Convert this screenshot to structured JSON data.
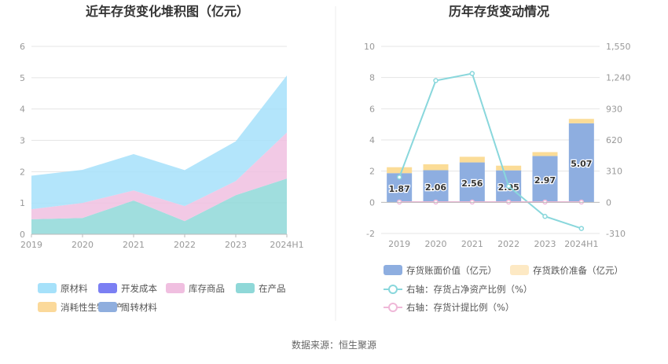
{
  "source": {
    "label": "数据来源：",
    "name": "恒生聚源"
  },
  "colors": {
    "raw_material": "#a6e1fa",
    "dev_cost": "#7b7ff3",
    "finished_goods": "#f0bfe0",
    "wip": "#8fd8d8",
    "consumable_bio": "#fbd99a",
    "turnover_material": "#8faede",
    "book_value_bar": "#8eaee0",
    "impairment_bar": "#fbdc97",
    "ratio_line": "#89d7dc",
    "provision_line": "#efb8d8",
    "grid": "#e5e5e5",
    "axis": "#bbbbbb"
  },
  "chart_data": [
    {
      "type": "area",
      "title": "近年存货变化堆积图（亿元）",
      "categories": [
        "2019",
        "2020",
        "2021",
        "2022",
        "2023",
        "2024H1"
      ],
      "ylim": [
        0,
        6
      ],
      "yticks": [
        "0",
        "1",
        "2",
        "3",
        "4",
        "5",
        "6"
      ],
      "stacked": true,
      "series": [
        {
          "name": "在产品",
          "key": "wip",
          "values": [
            0.48,
            0.52,
            1.08,
            0.42,
            1.25,
            1.78
          ]
        },
        {
          "name": "库存商品",
          "key": "finished_goods",
          "values": [
            0.32,
            0.48,
            0.32,
            0.48,
            0.45,
            1.47
          ]
        },
        {
          "name": "原材料",
          "key": "raw_material",
          "values": [
            1.07,
            1.06,
            1.16,
            1.15,
            1.27,
            1.82
          ]
        }
      ],
      "legend": [
        {
          "name": "原材料",
          "key": "raw_material"
        },
        {
          "name": "开发成本",
          "key": "dev_cost"
        },
        {
          "name": "库存商品",
          "key": "finished_goods"
        },
        {
          "name": "在产品",
          "key": "wip"
        },
        {
          "name": "消耗性生物资产",
          "key": "consumable_bio"
        },
        {
          "name": "周转材料",
          "key": "turnover_material"
        }
      ],
      "legend_position": "bottom",
      "grid": true
    },
    {
      "type": "bar+line",
      "title": "历年存货变动情况",
      "categories": [
        "2019",
        "2020",
        "2021",
        "2022",
        "2023",
        "2024H1"
      ],
      "ylim_left": [
        -2,
        10
      ],
      "yticks_left": [
        "-2",
        "0",
        "2",
        "4",
        "6",
        "8",
        "10"
      ],
      "ylim_right": [
        -310,
        1550
      ],
      "yticks_right": [
        "-310",
        "0",
        "310",
        "620",
        "930",
        "1,240",
        "1,550"
      ],
      "bars": [
        {
          "name": "存货账面价值（亿元）",
          "key": "book_value_bar",
          "values": [
            1.87,
            2.06,
            2.56,
            2.05,
            2.97,
            5.07
          ],
          "labels": [
            "1.87",
            "2.06",
            "2.56",
            "2.05",
            "2.97",
            "5.07"
          ]
        },
        {
          "name": "存货跌价准备（亿元）",
          "key": "impairment_bar",
          "values": [
            0.38,
            0.38,
            0.36,
            0.3,
            0.25,
            0.28
          ]
        }
      ],
      "lines": [
        {
          "name": "右轴：存货占净资产比例（%）",
          "key": "ratio_line",
          "axis": "right",
          "values": [
            250,
            1210,
            1280,
            160,
            -140,
            -260
          ]
        },
        {
          "name": "右轴：存货计提比例（%）",
          "key": "provision_line",
          "axis": "right",
          "values": [
            3,
            3,
            3,
            3,
            3,
            3
          ]
        }
      ],
      "legend_position": "bottom",
      "grid": true
    }
  ]
}
